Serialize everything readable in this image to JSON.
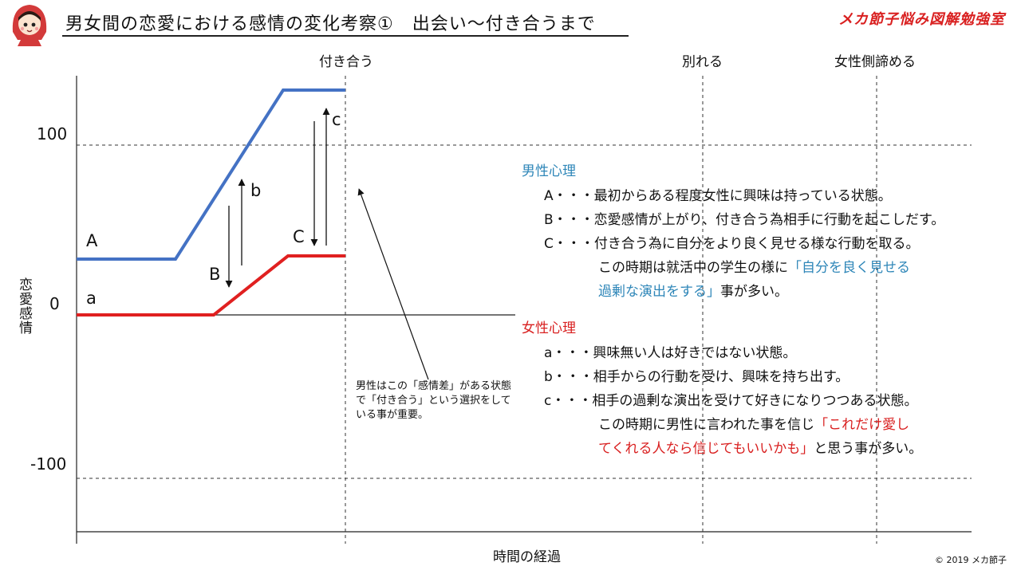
{
  "title": "男女間の恋愛における感情の変化考察①　出会い～付き合うまで",
  "brand": "メカ節子悩み図解勉強室",
  "copyright": "© 2019 メカ節子",
  "mascot_icon": "red-hood-girl-icon",
  "columns": [
    "付き合う",
    "別れる",
    "女性側諦める"
  ],
  "y_axis_title": "恋愛感情",
  "x_axis_title": "時間の経過",
  "y_ticks": [
    "100",
    "0",
    "-100"
  ],
  "series_labels": {
    "A": "A",
    "a": "a",
    "B": "B",
    "b": "b",
    "C": "C",
    "c": "c"
  },
  "annotation": "男性はこの「感情差」がある状態で「付き合う」という選択をしている事が重要。",
  "colors": {
    "male": "#4472c4",
    "female": "#e02020",
    "male_text": "#2e86b8",
    "female_text": "#d92020"
  },
  "male": {
    "heading": "男性心理",
    "A": "A・・・最初からある程度女性に興味は持っている状態。",
    "B": "B・・・恋愛感情が上がり、付き合う為相手に行動を起こしだす。",
    "C": "C・・・付き合う為に自分をより良く見せる様な行動を取る。",
    "C_cont1_pre": "この時期は就活中の学生の様に",
    "C_cont1_hl": "「自分を良く見せる",
    "C_cont2_hl": "過剰な演出をする」",
    "C_cont2_post": "事が多い。"
  },
  "female": {
    "heading": "女性心理",
    "a": "a・・・興味無い人は好きではない状態。",
    "b": "b・・・相手からの行動を受け、興味を持ち出す。",
    "c": "c・・・相手の過剰な演出を受けて好きになりつつある状態。",
    "c_cont1_pre": "この時期に男性に言われた事を信じ",
    "c_cont1_hl": "「これだけ愛し",
    "c_cont2_hl": "てくれる人なら信じてもいいかも」",
    "c_cont2_post": "と思う事が多い。"
  }
}
